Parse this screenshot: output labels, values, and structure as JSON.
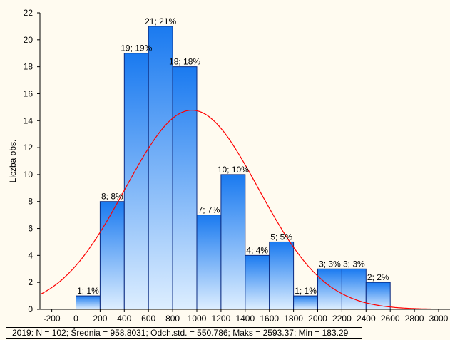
{
  "chart_data": {
    "type": "bar",
    "ylabel": "Liczba obs.",
    "xlabel": "",
    "title": "",
    "xlim": [
      -300,
      3100
    ],
    "ylim": [
      0,
      22
    ],
    "xticks": [
      -200,
      0,
      200,
      400,
      600,
      800,
      1000,
      1200,
      1400,
      1600,
      1800,
      2000,
      2200,
      2400,
      2600,
      2800,
      3000
    ],
    "yticks": [
      0,
      2,
      4,
      6,
      8,
      10,
      12,
      14,
      16,
      18,
      20,
      22
    ],
    "bin_width": 200,
    "bins": [
      {
        "start": 0,
        "count": 1,
        "label": "1; 1%"
      },
      {
        "start": 200,
        "count": 8,
        "label": "8; 8%"
      },
      {
        "start": 400,
        "count": 19,
        "label": "19; 19%"
      },
      {
        "start": 600,
        "count": 21,
        "label": "21; 21%"
      },
      {
        "start": 800,
        "count": 18,
        "label": "18; 18%"
      },
      {
        "start": 1000,
        "count": 7,
        "label": "7; 7%"
      },
      {
        "start": 1200,
        "count": 10,
        "label": "10; 10%"
      },
      {
        "start": 1400,
        "count": 4,
        "label": "4; 4%"
      },
      {
        "start": 1600,
        "count": 5,
        "label": "5; 5%"
      },
      {
        "start": 1800,
        "count": 1,
        "label": "1; 1%"
      },
      {
        "start": 2000,
        "count": 3,
        "label": "3; 3%"
      },
      {
        "start": 2200,
        "count": 3,
        "label": "3; 3%"
      },
      {
        "start": 2400,
        "count": 2,
        "label": "2; 2%"
      }
    ],
    "normal_curve": {
      "n": 102,
      "mean": 958.8031,
      "sd": 550.786
    },
    "grid": false,
    "colors": {
      "bar_top": "#1a7af0",
      "bar_bottom": "#ddeeff",
      "bar_edge": "#0a2a80",
      "curve": "#ff0000",
      "background": "#fffbf0"
    }
  },
  "stats_text": "2019:   N = 102; Średnia = 958.8031; Odch.std. = 550.786; Maks = 2593.37; Min = 183.29"
}
